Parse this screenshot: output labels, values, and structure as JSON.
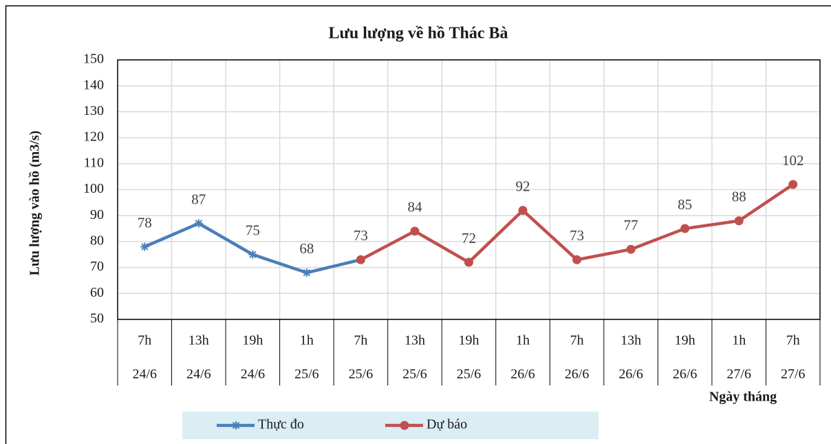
{
  "chart_data": {
    "type": "line",
    "title": "Lưu lượng về hồ Thác Bà",
    "y_label": "Lưu lượng vào hồ (m3/s)",
    "x_label": "Ngày tháng",
    "categories": [
      [
        "7h",
        "24/6"
      ],
      [
        "13h",
        "24/6"
      ],
      [
        "19h",
        "24/6"
      ],
      [
        "1h",
        "25/6"
      ],
      [
        "7h",
        "25/6"
      ],
      [
        "13h",
        "25/6"
      ],
      [
        "19h",
        "25/6"
      ],
      [
        "1h",
        "26/6"
      ],
      [
        "7h",
        "26/6"
      ],
      [
        "13h",
        "26/6"
      ],
      [
        "19h",
        "26/6"
      ],
      [
        "1h",
        "27/6"
      ],
      [
        "7h",
        "27/6"
      ]
    ],
    "series": [
      {
        "name": "Thực đo",
        "color": "#4a7ebb",
        "marker": "star",
        "values": [
          78,
          87,
          75,
          68,
          73,
          null,
          null,
          null,
          null,
          null,
          null,
          null,
          null
        ]
      },
      {
        "name": "Dự báo",
        "color": "#c0504d",
        "marker": "circle",
        "values": [
          null,
          null,
          null,
          null,
          73,
          84,
          72,
          92,
          73,
          77,
          85,
          88,
          102
        ]
      }
    ],
    "ylim": [
      50,
      150
    ],
    "yticks": [
      50,
      60,
      70,
      80,
      90,
      100,
      110,
      120,
      130,
      140,
      150
    ],
    "grid": true
  }
}
